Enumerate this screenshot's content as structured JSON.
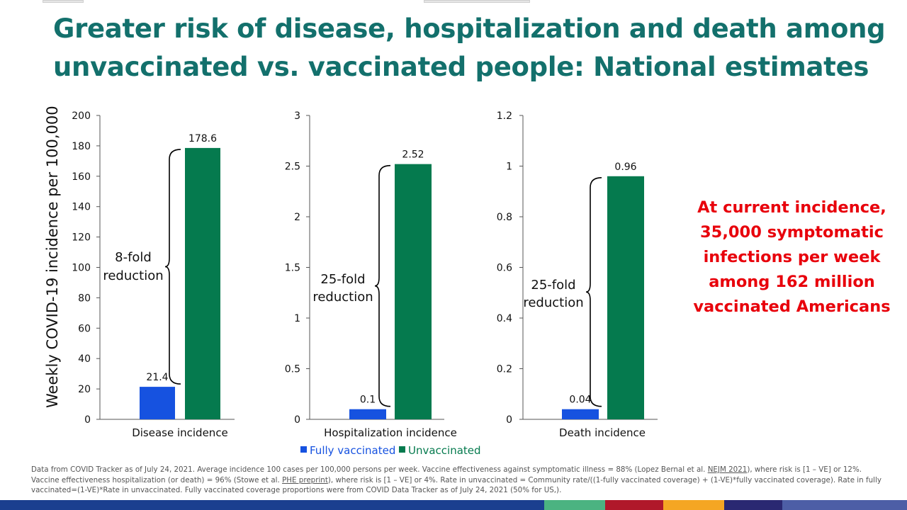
{
  "title": {
    "line1": "Greater risk of disease, hospitalization and death among",
    "line2": "unvaccinated vs. vaccinated people: National estimates"
  },
  "y_axis_label": "Weekly COVID-19 incidence per 100,000",
  "legend": {
    "fully_vaccinated": "Fully vaccinated",
    "unvaccinated": "Unvaccinated"
  },
  "colors": {
    "title": "#13706c",
    "fully_vaccinated": "#1652e0",
    "unvaccinated": "#057a4e",
    "callout": "#e8000b"
  },
  "callout": {
    "lines": [
      "At current incidence,",
      "35,000 symptomatic",
      "infections per week",
      "among 162 million",
      "vaccinated Americans"
    ]
  },
  "footnote": {
    "p1": "Data from COVID Tracker as of July 24, 2021. Average incidence 100 cases per 100,000 persons per week. Vaccine effectiveness against symptomatic illness = 88% (Lopez Bernal et al. ",
    "link1": "NEJM 2021",
    "p2": "), where risk is [1 – VE] or 12%. Vaccine effectiveness hospitalization (or death) = 96% (Stowe et al. ",
    "link2": "PHE preprint",
    "p3": "), where risk is [1 – VE] or 4%.  Rate in unvaccinated = Community rate/((1-fully vaccinated coverage) + (1-VE)*fully vaccinated coverage). Rate in fully vaccinated=(1-VE)*Rate in unvaccinated. Fully vaccinated coverage proportions were from COVID Data Tracker as of July 24, 2021 (50% for US,)."
  },
  "bottom_bar_colors": [
    "#1b3f8f",
    "#1b3f8f",
    "#4bb381",
    "#b0182a",
    "#f5a623",
    "#2a2872",
    "#4d5ea6"
  ],
  "chart_data": [
    {
      "type": "bar",
      "xlabel": "Disease incidence",
      "ylabel": "Weekly COVID-19 incidence per 100,000",
      "ylim": [
        0,
        200
      ],
      "yticks": [
        "0",
        "20",
        "40",
        "60",
        "80",
        "100",
        "120",
        "140",
        "160",
        "180",
        "200"
      ],
      "series": [
        {
          "name": "Fully vaccinated",
          "value": 21.4,
          "label": "21.4"
        },
        {
          "name": "Unvaccinated",
          "value": 178.6,
          "label": "178.6"
        }
      ],
      "annotation": [
        "8-fold",
        "reduction"
      ]
    },
    {
      "type": "bar",
      "xlabel": "Hospitalization incidence",
      "ylim": [
        0,
        3
      ],
      "yticks": [
        "0",
        "0.5",
        "1",
        "1.5",
        "2",
        "2.5",
        "3"
      ],
      "series": [
        {
          "name": "Fully vaccinated",
          "value": 0.1,
          "label": "0.1"
        },
        {
          "name": "Unvaccinated",
          "value": 2.52,
          "label": "2.52"
        }
      ],
      "annotation": [
        "25-fold",
        "reduction"
      ]
    },
    {
      "type": "bar",
      "xlabel": "Death incidence",
      "ylim": [
        0,
        1.2
      ],
      "yticks": [
        "0",
        "0.2",
        "0.4",
        "0.6",
        "0.8",
        "1",
        "1.2"
      ],
      "series": [
        {
          "name": "Fully vaccinated",
          "value": 0.04,
          "label": "0.04"
        },
        {
          "name": "Unvaccinated",
          "value": 0.96,
          "label": "0.96"
        }
      ],
      "annotation": [
        "25-fold",
        "reduction"
      ]
    }
  ]
}
